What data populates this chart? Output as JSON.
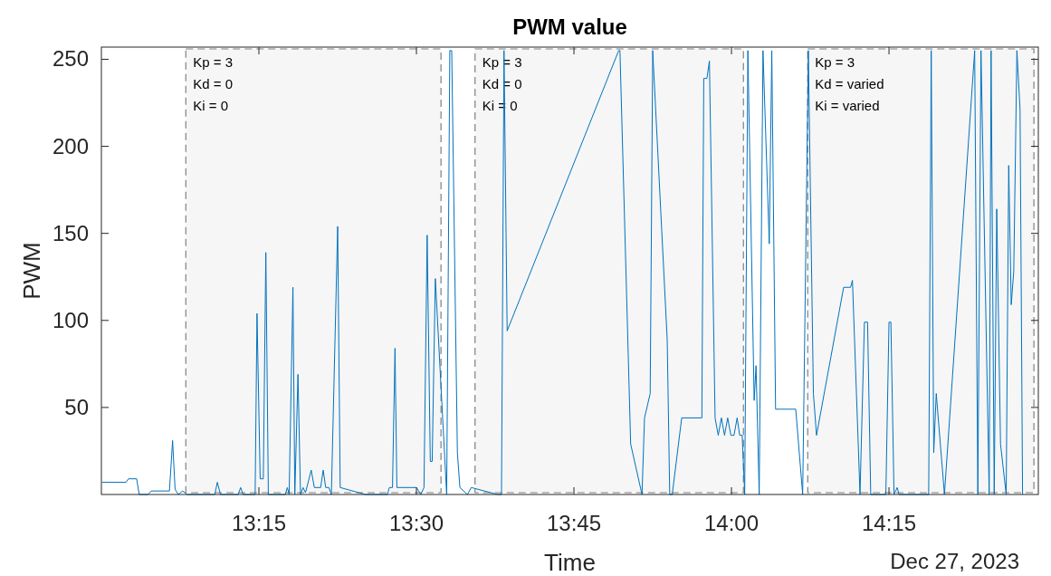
{
  "chart_data": {
    "type": "line",
    "title": "PWM value",
    "xlabel": "Time",
    "ylabel": "PWM",
    "annotations": [
      "Dec 27, 2023"
    ],
    "xlim": [
      13,
      14.487
    ],
    "ylim": [
      0,
      257
    ],
    "xticks": [
      {
        "value": 13.25,
        "label": "13:15"
      },
      {
        "value": 13.5,
        "label": "13:30"
      },
      {
        "value": 13.75,
        "label": "13:45"
      },
      {
        "value": 14,
        "label": "14:00"
      },
      {
        "value": 14.25,
        "label": "14:15"
      }
    ],
    "yticks": [
      50,
      100,
      150,
      200,
      250
    ],
    "grid": false,
    "line_style": "solid",
    "marker": "none",
    "bands": [
      {
        "axis": "x",
        "from": 13.134,
        "to": 13.539,
        "label": "Kp = 3\nKd = 0\nKi = 0",
        "color": "#808080"
      },
      {
        "axis": "x",
        "from": 13.593,
        "to": 14.019,
        "label": "Kp = 3\nKd = 0\nKi = 0",
        "color": "#808080"
      },
      {
        "axis": "x",
        "from": 14.121,
        "to": 14.48,
        "label": "Kp = 3\nKd = varied\nKi = varied",
        "color": "#808080"
      }
    ],
    "series": [
      {
        "color": "#0072bd",
        "x": [
          13.001,
          13.039,
          13.043,
          13.056,
          13.06,
          13.074,
          13.079,
          13.108,
          13.113,
          13.117,
          13.122,
          13.129,
          13.136,
          13.18,
          13.184,
          13.189,
          13.217,
          13.221,
          13.225,
          13.244,
          13.247,
          13.252,
          13.257,
          13.261,
          13.265,
          13.292,
          13.295,
          13.298,
          13.304,
          13.307,
          13.312,
          13.316,
          13.32,
          13.324,
          13.333,
          13.338,
          13.348,
          13.352,
          13.356,
          13.361,
          13.365,
          13.375,
          13.379,
          13.419,
          13.454,
          13.457,
          13.462,
          13.466,
          13.469,
          13.5,
          13.507,
          13.512,
          13.517,
          13.522,
          13.525,
          13.53,
          13.548,
          13.553,
          13.556,
          13.565,
          13.569,
          13.581,
          13.587,
          13.629,
          13.635,
          13.639,
          13.644,
          13.821,
          13.823,
          13.84,
          13.858,
          13.862,
          13.871,
          13.875,
          13.898,
          13.902,
          13.906,
          13.921,
          13.953,
          13.956,
          13.961,
          13.965,
          13.974,
          13.979,
          13.984,
          13.989,
          13.994,
          13.999,
          14.004,
          14.009,
          14.013,
          14.017,
          14.021,
          14.026,
          14.036,
          14.039,
          14.044,
          14.05,
          14.06,
          14.064,
          14.07,
          14.102,
          14.113,
          14.122,
          14.13,
          14.135,
          14.178,
          14.189,
          14.192,
          14.204,
          14.211,
          14.216,
          14.221,
          14.245,
          14.25,
          14.253,
          14.258,
          14.263,
          14.266,
          14.313,
          14.317,
          14.321,
          14.325,
          14.338,
          14.386,
          14.391,
          14.396,
          14.409,
          14.412,
          14.417,
          14.421,
          14.427,
          14.436,
          14.44,
          14.444,
          14.448,
          14.453,
          14.458,
          14.462
        ],
        "values": [
          7,
          7,
          9,
          9,
          0,
          0,
          2,
          2,
          31,
          3,
          0,
          2,
          0,
          0,
          7,
          0,
          0,
          4,
          0,
          0,
          104,
          9,
          9,
          139,
          0,
          0,
          4,
          0,
          119,
          0,
          69,
          0,
          4,
          1,
          14,
          4,
          4,
          14,
          4,
          4,
          0,
          154,
          4,
          0,
          0,
          4,
          4,
          84,
          4,
          4,
          0,
          4,
          149,
          19,
          19,
          124,
          0,
          255,
          255,
          24,
          4,
          0,
          4,
          0,
          0,
          255,
          94,
          255,
          255,
          29,
          0,
          44,
          58,
          255,
          89,
          0,
          0,
          44,
          44,
          239,
          239,
          249,
          44,
          34,
          44,
          34,
          44,
          34,
          34,
          44,
          34,
          34,
          0,
          255,
          54,
          74,
          0,
          255,
          144,
          255,
          49,
          49,
          0,
          255,
          58,
          34,
          119,
          119,
          123,
          0,
          99,
          99,
          0,
          0,
          99,
          99,
          0,
          4,
          0,
          0,
          255,
          24,
          58,
          0,
          255,
          0,
          255,
          0,
          255,
          0,
          164,
          29,
          0,
          189,
          109,
          128,
          255,
          221,
          0
        ]
      }
    ]
  }
}
